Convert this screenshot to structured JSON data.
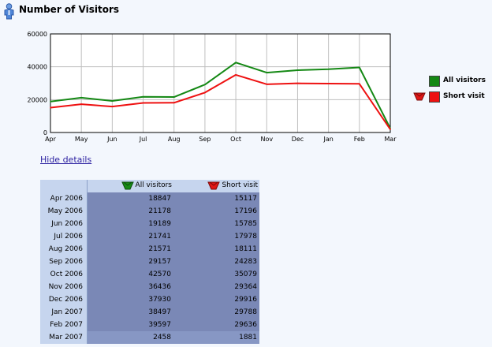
{
  "header": {
    "title": "Number of Visitors",
    "icon": "visitor-icon"
  },
  "chart_data": {
    "type": "line",
    "categories": [
      "Apr",
      "May",
      "Jun",
      "Jul",
      "Aug",
      "Sep",
      "Oct",
      "Nov",
      "Dec",
      "Jan",
      "Feb",
      "Mar"
    ],
    "series": [
      {
        "name": "All visitors",
        "color": "#148814",
        "values": [
          18847,
          21178,
          19189,
          21741,
          21571,
          29157,
          42570,
          36436,
          37930,
          38497,
          39597,
          2458
        ]
      },
      {
        "name": "Short visit",
        "color": "#ee1111",
        "values": [
          15117,
          17196,
          15785,
          17978,
          18111,
          24283,
          35079,
          29364,
          29916,
          29788,
          29636,
          1881
        ]
      }
    ],
    "ylim": [
      0,
      60000
    ],
    "yticks": [
      0,
      20000,
      40000,
      60000
    ],
    "grid": true,
    "legend": "right"
  },
  "details": {
    "hide_label": "Hide details",
    "columns": [
      "All visitors",
      "Short visit"
    ],
    "rows": [
      {
        "label": "Apr 2006",
        "values": [
          "18847",
          "15117"
        ]
      },
      {
        "label": "May 2006",
        "values": [
          "21178",
          "17196"
        ]
      },
      {
        "label": "Jun 2006",
        "values": [
          "19189",
          "15785"
        ]
      },
      {
        "label": "Jul 2006",
        "values": [
          "21741",
          "17978"
        ]
      },
      {
        "label": "Aug 2006",
        "values": [
          "21571",
          "18111"
        ]
      },
      {
        "label": "Sep 2006",
        "values": [
          "29157",
          "24283"
        ]
      },
      {
        "label": "Oct 2006",
        "values": [
          "42570",
          "35079"
        ]
      },
      {
        "label": "Nov 2006",
        "values": [
          "36436",
          "29364"
        ]
      },
      {
        "label": "Dec 2006",
        "values": [
          "37930",
          "29916"
        ]
      },
      {
        "label": "Jan 2007",
        "values": [
          "38497",
          "29788"
        ]
      },
      {
        "label": "Feb 2007",
        "values": [
          "39597",
          "29636"
        ]
      },
      {
        "label": "Mar 2007",
        "values": [
          "2458",
          "1881"
        ]
      }
    ]
  }
}
